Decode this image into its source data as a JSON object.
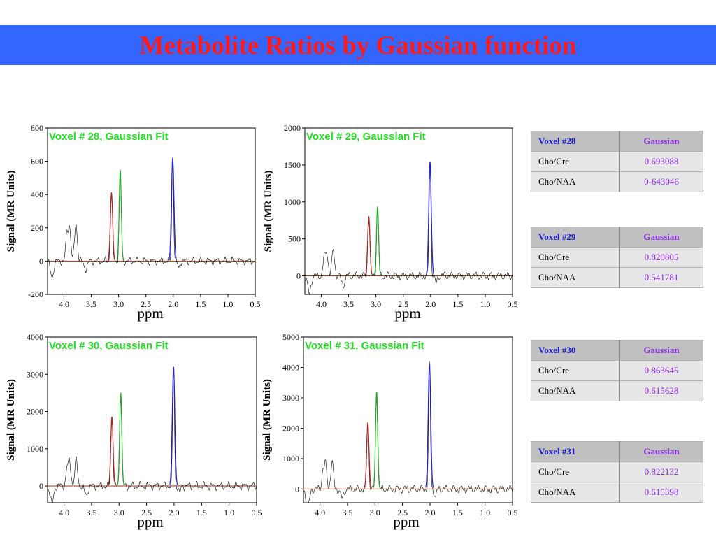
{
  "title": "Metabolite Ratios by Gaussian function",
  "colors": {
    "cho": "#b22222",
    "cre": "#22aa22",
    "naa": "#2222cc",
    "baseline": "#8b3a1a",
    "raw": "#000000"
  },
  "chart_data": [
    {
      "type": "line",
      "title": "Voxel # 28, Gaussian Fit",
      "xlabel": "ppm",
      "ylabel": "Signal (MR Units)",
      "xlim": [
        4.3,
        0.5
      ],
      "ylim": [
        -200,
        800
      ],
      "xticks": [
        "4.0",
        "3.5",
        "3.0",
        "2.5",
        "2.0",
        "1.5",
        "1.0",
        "0.5"
      ],
      "yticks": [
        "-200",
        "0",
        "200",
        "400",
        "600",
        "800"
      ],
      "yvals": [
        -200,
        0,
        200,
        400,
        600,
        800
      ],
      "series": [
        {
          "values": [
            [
              3.2,
              0
            ],
            [
              3.13,
              410
            ],
            [
              3.07,
              0
            ]
          ]
        },
        {
          "values": [
            [
              3.03,
              0
            ],
            [
              2.97,
              545
            ],
            [
              2.91,
              0
            ]
          ]
        },
        {
          "values": [
            [
              2.08,
              0
            ],
            [
              2.01,
              620
            ],
            [
              1.94,
              0
            ]
          ]
        }
      ]
    },
    {
      "type": "line",
      "title": "Voxel # 29, Gaussian Fit",
      "xlabel": "ppm",
      "ylabel": "Signal (MR Units)",
      "xlim": [
        4.3,
        0.5
      ],
      "ylim": [
        -250,
        2000
      ],
      "xticks": [
        "4.0",
        "3.5",
        "3.0",
        "2.5",
        "2.0",
        "1.5",
        "1.0",
        "0.5"
      ],
      "yticks": [
        "0",
        "500",
        "1000",
        "1500",
        "2000"
      ],
      "yvals": [
        0,
        500,
        1000,
        1500,
        2000
      ],
      "series": [
        {
          "values": [
            [
              3.2,
              0
            ],
            [
              3.13,
              800
            ],
            [
              3.07,
              0
            ]
          ]
        },
        {
          "values": [
            [
              3.03,
              0
            ],
            [
              2.97,
              930
            ],
            [
              2.91,
              0
            ]
          ]
        },
        {
          "values": [
            [
              2.08,
              0
            ],
            [
              2.01,
              1540
            ],
            [
              1.94,
              0
            ]
          ]
        }
      ]
    },
    {
      "type": "line",
      "title": "Voxel # 30, Gaussian Fit",
      "xlabel": "ppm",
      "ylabel": "Signal (MR Units)",
      "xlim": [
        4.3,
        0.5
      ],
      "ylim": [
        -450,
        4000
      ],
      "xticks": [
        "4.0",
        "3.5",
        "3.0",
        "2.5",
        "2.0",
        "1.5",
        "1.0",
        "0.5"
      ],
      "yticks": [
        "0",
        "1000",
        "2000",
        "3000",
        "4000"
      ],
      "yvals": [
        0,
        1000,
        2000,
        3000,
        4000
      ],
      "series": [
        {
          "values": [
            [
              3.2,
              0
            ],
            [
              3.13,
              1850
            ],
            [
              3.07,
              0
            ]
          ]
        },
        {
          "values": [
            [
              3.03,
              0
            ],
            [
              2.97,
              2500
            ],
            [
              2.91,
              0
            ]
          ]
        },
        {
          "values": [
            [
              2.08,
              0
            ],
            [
              2.01,
              3200
            ],
            [
              1.94,
              0
            ]
          ]
        }
      ]
    },
    {
      "type": "line",
      "title": "Voxel # 31, Gaussian Fit",
      "xlabel": "ppm",
      "ylabel": "Signal (MR Units)",
      "xlim": [
        4.3,
        0.5
      ],
      "ylim": [
        -450,
        5000
      ],
      "xticks": [
        "4.0",
        "3.5",
        "3.0",
        "2.5",
        "2.0",
        "1.5",
        "1.0",
        "0.5"
      ],
      "yticks": [
        "0",
        "1000",
        "2000",
        "3000",
        "4000",
        "5000"
      ],
      "yvals": [
        0,
        1000,
        2000,
        3000,
        4000,
        5000
      ],
      "series": [
        {
          "values": [
            [
              3.2,
              0
            ],
            [
              3.13,
              2180
            ],
            [
              3.07,
              0
            ]
          ]
        },
        {
          "values": [
            [
              3.03,
              0
            ],
            [
              2.97,
              3200
            ],
            [
              2.91,
              0
            ]
          ]
        },
        {
          "values": [
            [
              2.08,
              0
            ],
            [
              2.01,
              4150
            ],
            [
              1.94,
              0
            ]
          ]
        }
      ]
    }
  ],
  "tables": [
    {
      "voxel": "Voxel #28",
      "method": "Gaussian",
      "rows": [
        {
          "label": "Cho/Cre",
          "value": "0.693088"
        },
        {
          "label": "Cho/NAA",
          "value": "0-643046"
        }
      ]
    },
    {
      "voxel": "Voxel #29",
      "method": "Gaussian",
      "rows": [
        {
          "label": "Cho/Cre",
          "value": "0.820805"
        },
        {
          "label": "Cho/NAA",
          "value": "0.541781"
        }
      ]
    },
    {
      "voxel": "Voxel #30",
      "method": "Gaussian",
      "rows": [
        {
          "label": "Cho/Cre",
          "value": "0.863645"
        },
        {
          "label": "Cho/NAA",
          "value": "0.615628"
        }
      ]
    },
    {
      "voxel": "Voxel #31",
      "method": "Gaussian",
      "rows": [
        {
          "label": "Cho/Cre",
          "value": "0.822132"
        },
        {
          "label": "Cho/NAA",
          "value": "0.615398"
        }
      ]
    }
  ]
}
